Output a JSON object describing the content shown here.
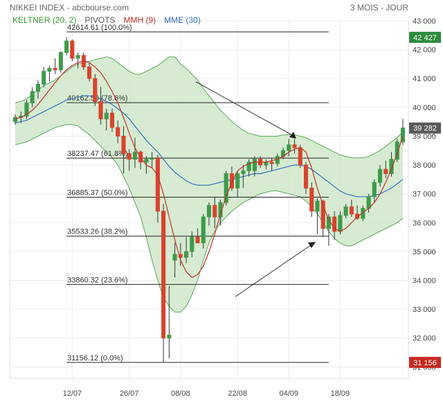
{
  "header": {
    "title": "NIKKEI INDEX - abcbourse.com",
    "period": "3 MOIS - JOUR"
  },
  "legend": [
    {
      "label": "KELTNER (20, 2)",
      "color": "#3a9a3a"
    },
    {
      "label": "PIVOTS",
      "color": "#555555"
    },
    {
      "label": "MMH (9)",
      "color": "#c0302a"
    },
    {
      "label": "MME (30)",
      "color": "#2f6fbf"
    }
  ],
  "colors": {
    "up": "#3e9b4a",
    "down": "#d9432e",
    "keltner_fill": "#cfe8c9",
    "keltner_line": "#5aa85a",
    "mmh": "#c0302a",
    "mme": "#2f6fbf",
    "price_badge": "#5a5a5a",
    "high_badge": "#2e8b3a",
    "low_badge": "#c62a20"
  },
  "chart_data": {
    "type": "candlestick",
    "title": "NIKKEI INDEX",
    "ylim": [
      30600,
      43000
    ],
    "yticks": [
      "31 000",
      "32 000",
      "33 000",
      "34 000",
      "35 000",
      "36 000",
      "37 000",
      "38 000",
      "39 000",
      "40 000",
      "41 000",
      "42 000",
      "43 000"
    ],
    "ytick_values": [
      31000,
      32000,
      33000,
      34000,
      35000,
      36000,
      37000,
      38000,
      39000,
      40000,
      41000,
      42000,
      43000
    ],
    "xtick_labels": [
      {
        "label": "12/07",
        "day": 10
      },
      {
        "label": "26/07",
        "day": 20
      },
      {
        "label": "08/08",
        "day": 29
      },
      {
        "label": "22/08",
        "day": 39
      },
      {
        "label": "04/09",
        "day": 48
      },
      {
        "label": "18/09",
        "day": 57
      }
    ],
    "badges": [
      {
        "label": "42 427",
        "value": 42427,
        "kind": "high"
      },
      {
        "label": "39 282",
        "value": 39282,
        "kind": "last"
      },
      {
        "label": "31 156",
        "value": 31156,
        "kind": "low"
      }
    ],
    "pivots": [
      {
        "label": "42614.61 (100.0%)",
        "value": 42614.61
      },
      {
        "label": "40162.50 (78.6%)",
        "value": 40162.5
      },
      {
        "label": "38237.47 (61.8%)",
        "value": 38237.47
      },
      {
        "label": "36885.37 (50.0%)",
        "value": 36885.37
      },
      {
        "label": "35533.26 (38.2%)",
        "value": 35533.26
      },
      {
        "label": "33860.32 (23.6%)",
        "value": 33860.32
      },
      {
        "label": "31156.12 (0.0%)",
        "value": 31156.12
      }
    ],
    "pivot_day_range": [
      9,
      55
    ],
    "ohlc": [
      [
        39500,
        39750,
        39400,
        39650
      ],
      [
        39650,
        39850,
        39450,
        39700
      ],
      [
        39700,
        40250,
        39600,
        40150
      ],
      [
        40150,
        40700,
        40000,
        40550
      ],
      [
        40550,
        40950,
        40300,
        40800
      ],
      [
        40800,
        41400,
        40700,
        41250
      ],
      [
        41250,
        41450,
        40900,
        41350
      ],
      [
        41350,
        41700,
        41150,
        41300
      ],
      [
        41300,
        41950,
        41200,
        41900
      ],
      [
        41900,
        42427,
        41800,
        42300
      ],
      [
        42300,
        42350,
        41600,
        41700
      ],
      [
        41700,
        41900,
        41350,
        41800
      ],
      [
        41800,
        41900,
        41300,
        41400
      ],
      [
        41400,
        41550,
        40900,
        41000
      ],
      [
        41000,
        41150,
        40050,
        40200
      ],
      [
        40200,
        40700,
        39400,
        39600
      ],
      [
        39600,
        39950,
        39200,
        39800
      ],
      [
        39800,
        39950,
        39150,
        39300
      ],
      [
        39300,
        39550,
        38750,
        39000
      ],
      [
        39000,
        39350,
        37700,
        38400
      ],
      [
        38400,
        38550,
        37800,
        38200
      ],
      [
        38200,
        38950,
        37900,
        38450
      ],
      [
        38450,
        38500,
        37850,
        38100
      ],
      [
        38100,
        38300,
        37700,
        38200
      ],
      [
        38200,
        38450,
        37900,
        38250
      ],
      [
        38250,
        38350,
        36000,
        36400
      ],
      [
        36400,
        36650,
        31156,
        32000
      ],
      [
        32000,
        33800,
        31300,
        32100
      ],
      [
        34700,
        35300,
        34100,
        34900
      ],
      [
        34900,
        35300,
        34500,
        34800
      ],
      [
        34800,
        35500,
        34600,
        35000
      ],
      [
        35000,
        35700,
        34800,
        35500
      ],
      [
        35500,
        35800,
        35300,
        35300
      ],
      [
        35300,
        36300,
        35100,
        36200
      ],
      [
        36200,
        36700,
        35900,
        36600
      ],
      [
        36600,
        36900,
        35800,
        36200
      ],
      [
        36200,
        36800,
        35900,
        36700
      ],
      [
        36700,
        37800,
        36600,
        37700
      ],
      [
        37700,
        37950,
        37100,
        37200
      ],
      [
        37200,
        37800,
        36900,
        37700
      ],
      [
        37700,
        38000,
        37200,
        37800
      ],
      [
        37800,
        38200,
        37600,
        38100
      ],
      [
        37800,
        38300,
        37600,
        38200
      ],
      [
        38200,
        38300,
        37900,
        38000
      ],
      [
        38000,
        38200,
        37850,
        38100
      ],
      [
        38100,
        38250,
        37800,
        38050
      ],
      [
        38050,
        38400,
        37950,
        38300
      ],
      [
        38300,
        38600,
        38200,
        38500
      ],
      [
        38500,
        38900,
        38300,
        38700
      ],
      [
        38700,
        38900,
        38400,
        38600
      ],
      [
        38600,
        38700,
        37900,
        38000
      ],
      [
        38000,
        38100,
        37000,
        37200
      ],
      [
        37200,
        37400,
        36200,
        36400
      ],
      [
        36400,
        36850,
        35600,
        36750
      ],
      [
        36750,
        36800,
        35500,
        35800
      ],
      [
        35800,
        36300,
        35200,
        36200
      ],
      [
        36200,
        36400,
        35400,
        35700
      ],
      [
        35700,
        36400,
        35600,
        36250
      ],
      [
        36250,
        36650,
        36150,
        36550
      ],
      [
        36550,
        36800,
        36200,
        36300
      ],
      [
        36300,
        36600,
        36100,
        36150
      ],
      [
        36150,
        36600,
        36050,
        36500
      ],
      [
        36500,
        37000,
        36350,
        36900
      ],
      [
        36900,
        37500,
        36700,
        37400
      ],
      [
        37400,
        38000,
        37250,
        37850
      ],
      [
        37850,
        38150,
        37550,
        37700
      ],
      [
        37700,
        38450,
        37600,
        38200
      ],
      [
        38200,
        38900,
        38100,
        38800
      ],
      [
        38800,
        39600,
        38700,
        39282
      ]
    ],
    "keltner_upper": [
      40150,
      40200,
      40300,
      40450,
      40600,
      40750,
      40850,
      40950,
      41100,
      41250,
      41400,
      41500,
      41550,
      41600,
      41650,
      41700,
      41750,
      41700,
      41550,
      41400,
      41250,
      41150,
      41150,
      41250,
      41350,
      41450,
      41600,
      41750,
      41750,
      41500,
      41350,
      41150,
      40950,
      40650,
      40400,
      40150,
      39900,
      39700,
      39500,
      39350,
      39200,
      39100,
      39050,
      39000,
      39000,
      39000,
      39000,
      39050,
      39050,
      39050,
      39000,
      38950,
      38850,
      38750,
      38650,
      38550,
      38450,
      38350,
      38300,
      38250,
      38250,
      38250,
      38300,
      38400,
      38500,
      38650,
      38800,
      38950,
      39150
    ],
    "keltner_lower": [
      38700,
      38750,
      38800,
      38900,
      39000,
      39100,
      39200,
      39300,
      39350,
      39400,
      39400,
      39350,
      39200,
      39050,
      38850,
      38650,
      38450,
      38250,
      38000,
      37600,
      37200,
      36700,
      36200,
      35500,
      34700,
      34000,
      33400,
      33100,
      32900,
      32900,
      33100,
      33500,
      34000,
      34700,
      35300,
      35700,
      36000,
      36200,
      36400,
      36550,
      36700,
      36800,
      36900,
      37000,
      37050,
      37100,
      37100,
      37050,
      37000,
      36950,
      36900,
      36750,
      36550,
      36300,
      36000,
      35700,
      35450,
      35300,
      35200,
      35200,
      35300,
      35400,
      35500,
      35600,
      35700,
      35800,
      35900,
      36000,
      36150
    ],
    "mmh": [
      39600,
      39650,
      39750,
      39900,
      40100,
      40350,
      40600,
      40850,
      41100,
      41300,
      41450,
      41550,
      41600,
      41550,
      41400,
      41200,
      40900,
      40550,
      40150,
      39650,
      39100,
      38600,
      38250,
      38000,
      37900,
      37650,
      37000,
      36200,
      35400,
      34700,
      34300,
      34100,
      34200,
      34500,
      35000,
      35600,
      36300,
      36900,
      37400,
      37800,
      37950,
      38050,
      38100,
      38100,
      38100,
      38150,
      38200,
      38300,
      38450,
      38550,
      38600,
      38450,
      37900,
      37200,
      36600,
      36100,
      35800,
      35700,
      35800,
      36000,
      36200,
      36350,
      36500,
      36700,
      37000,
      37400,
      37850,
      38400,
      39000
    ],
    "mme": [
      39450,
      39500,
      39550,
      39650,
      39750,
      39850,
      39950,
      40050,
      40150,
      40250,
      40300,
      40350,
      40400,
      40400,
      40350,
      40300,
      40200,
      40100,
      39950,
      39800,
      39600,
      39350,
      39100,
      38850,
      38650,
      38450,
      38200,
      37950,
      37750,
      37600,
      37450,
      37350,
      37300,
      37300,
      37300,
      37350,
      37400,
      37450,
      37500,
      37550,
      37600,
      37650,
      37700,
      37700,
      37750,
      37800,
      37850,
      37900,
      37950,
      38000,
      38000,
      37950,
      37850,
      37700,
      37550,
      37400,
      37250,
      37100,
      37000,
      36950,
      36900,
      36900,
      36900,
      36950,
      37000,
      37100,
      37200,
      37350,
      37500
    ]
  }
}
